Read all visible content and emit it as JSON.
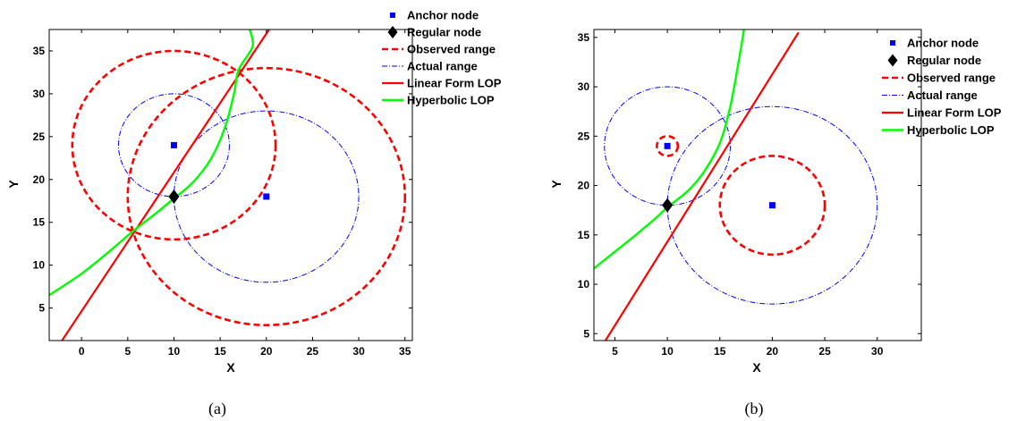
{
  "chart_data": [
    {
      "type": "line",
      "caption": "(a)",
      "xlabel": "X",
      "ylabel": "Y",
      "xlim": [
        -3.5,
        35.8
      ],
      "ylim": [
        1.2,
        37.5
      ],
      "xticks": [
        0,
        5,
        10,
        15,
        20,
        25,
        30,
        35
      ],
      "yticks": [
        5,
        10,
        15,
        20,
        25,
        30,
        35
      ],
      "legend_position": "top-right",
      "legend": [
        "Anchor node",
        "Regular node",
        "Observed range",
        "Actual range",
        "Linear Form LOP",
        "Hyperbolic LOP"
      ],
      "colors": {
        "anchor": "#0000ff",
        "regular": "#000000",
        "observed": "#ff0000",
        "actual": "#0000ff",
        "linear": "#ff0000",
        "hyperbolic": "#00ff00"
      },
      "anchors": [
        {
          "x": 10,
          "y": 24
        },
        {
          "x": 20,
          "y": 18
        }
      ],
      "regular": {
        "x": 10,
        "y": 18
      },
      "observed_ranges": [
        {
          "cx": 10,
          "cy": 24,
          "r": 11
        },
        {
          "cx": 20,
          "cy": 18,
          "r": 15
        }
      ],
      "actual_ranges": [
        {
          "cx": 10,
          "cy": 24,
          "r": 6
        },
        {
          "cx": 20,
          "cy": 18,
          "r": 10
        }
      ],
      "linear_lop": {
        "x0": -2.3,
        "y0": 0.9,
        "x1": 20.3,
        "y1": 37.5
      },
      "hyperbolic_lop": [
        [
          -3.5,
          6.5
        ],
        [
          0,
          9.0
        ],
        [
          3,
          11.6
        ],
        [
          5.5,
          13.9
        ],
        [
          8,
          16.0
        ],
        [
          10,
          17.8
        ],
        [
          12,
          19.6
        ],
        [
          14,
          22.4
        ],
        [
          15.5,
          26.0
        ],
        [
          16.5,
          30.0
        ],
        [
          17,
          32.8
        ],
        [
          18.5,
          35.5
        ],
        [
          18.2,
          37.5
        ]
      ]
    },
    {
      "type": "line",
      "caption": "(b)",
      "xlabel": "X",
      "ylabel": "Y",
      "xlim": [
        3.0,
        34.2
      ],
      "ylim": [
        4.3,
        35.8
      ],
      "xticks": [
        5,
        10,
        15,
        20,
        25,
        30
      ],
      "yticks": [
        5,
        10,
        15,
        20,
        25,
        30,
        35
      ],
      "legend_position": "top-right",
      "legend": [
        "Anchor node",
        "Regular node",
        "Observed range",
        "Actual range",
        "Linear Form LOP",
        "Hyperbolic LOP"
      ],
      "colors": {
        "anchor": "#0000ff",
        "regular": "#000000",
        "observed": "#ff0000",
        "actual": "#0000ff",
        "linear": "#ff0000",
        "hyperbolic": "#00ff00"
      },
      "anchors": [
        {
          "x": 10,
          "y": 24
        },
        {
          "x": 20,
          "y": 18
        }
      ],
      "regular": {
        "x": 10,
        "y": 18
      },
      "observed_ranges": [
        {
          "cx": 10,
          "cy": 24,
          "r": 1
        },
        {
          "cx": 20,
          "cy": 18,
          "r": 5
        }
      ],
      "actual_ranges": [
        {
          "cx": 10,
          "cy": 24,
          "r": 6
        },
        {
          "cx": 20,
          "cy": 18,
          "r": 10
        }
      ],
      "linear_lop": {
        "x0": 4.1,
        "y0": 4.3,
        "x1": 22.5,
        "y1": 35.5
      },
      "hyperbolic_lop": [
        [
          3.0,
          11.6
        ],
        [
          5,
          13.3
        ],
        [
          7,
          15.0
        ],
        [
          9,
          16.8
        ],
        [
          10,
          17.8
        ],
        [
          12,
          19.5
        ],
        [
          13.5,
          21.4
        ],
        [
          15,
          24.3
        ],
        [
          16,
          28.0
        ],
        [
          16.7,
          32.0
        ],
        [
          17.3,
          35.8
        ]
      ]
    }
  ]
}
